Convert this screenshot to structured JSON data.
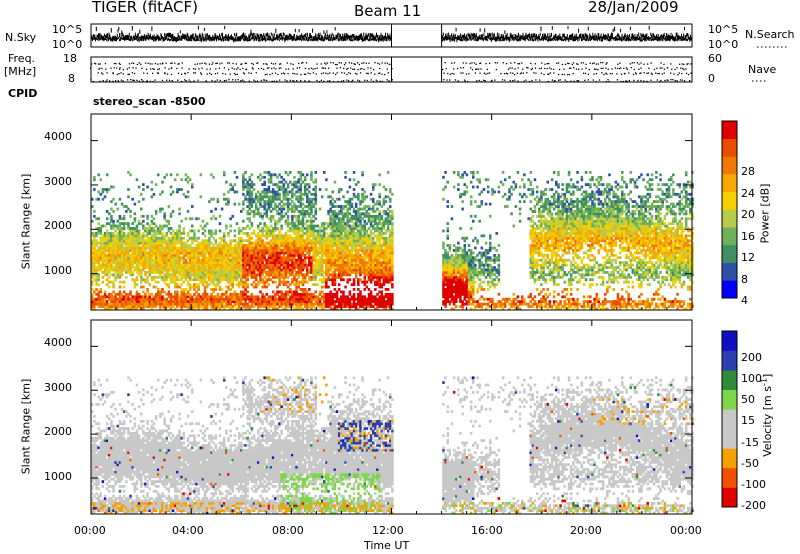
{
  "header": {
    "station": "TIGER (fitACF)",
    "beam": "Beam 11",
    "date": "28/Jan/2009"
  },
  "side_labels": {
    "nsky": "N.Sky",
    "freq": "Freq.",
    "mhz": "[MHz]",
    "cpid": "CPID",
    "nsearch": "N.Search",
    "nave": "Nave"
  },
  "cpid_value": "stereo_scan -8500",
  "colors": {
    "power": [
      "#0000ff",
      "#2e4fa8",
      "#3f8f62",
      "#6fb05a",
      "#b6cc4a",
      "#f5d000",
      "#f5a800",
      "#f07800",
      "#ea4b00",
      "#e00000"
    ],
    "velocity": [
      "#e00000",
      "#f05000",
      "#f5a000",
      "#c8c8c8",
      "#c8c8c8",
      "#7fd64a",
      "#2e8b3a",
      "#2a3fae",
      "#1010c0"
    ],
    "mark": "#000000"
  },
  "chart_data": [
    {
      "type": "line",
      "id": "noise-panel",
      "left_label": "N.Sky",
      "right_label": "N.Search",
      "y_ticks_left": [
        "10^5",
        "10^0"
      ],
      "y_ticks_right": [
        "10^5",
        "10^0"
      ],
      "x_range_hours": [
        0,
        24
      ],
      "data_gap_hours": [
        12,
        14
      ]
    },
    {
      "type": "scatter",
      "id": "freq-panel",
      "y_ticks_left": [
        "18",
        "8"
      ],
      "y_ticks_right": [
        "60",
        "0"
      ],
      "ylim_left": [
        8,
        18
      ],
      "ylim_right": [
        0,
        60
      ],
      "x_range_hours": [
        0,
        24
      ],
      "data_gap_hours": [
        12,
        14
      ]
    },
    {
      "type": "heatmap",
      "id": "power-panel",
      "ylabel": "Slant Range [km]",
      "y_ticks": [
        "1000",
        "2000",
        "3000",
        "4000"
      ],
      "y_tick_values": [
        1000,
        2000,
        3000,
        4000
      ],
      "ylim": [
        180,
        4600
      ],
      "x_range_hours": [
        0,
        24
      ],
      "data_gap_hours": [
        12,
        14
      ],
      "colorbar_label": "Power [dB]",
      "colorbar_ticks": [
        "4",
        "8",
        "12",
        "16",
        "20",
        "24",
        "28"
      ],
      "colorbar_range": [
        0,
        30
      ]
    },
    {
      "type": "heatmap",
      "id": "velocity-panel",
      "ylabel": "Slant Range [km]",
      "y_ticks": [
        "1000",
        "2000",
        "3000",
        "4000"
      ],
      "y_tick_values": [
        1000,
        2000,
        3000,
        4000
      ],
      "ylim": [
        180,
        4600
      ],
      "x_range_hours": [
        0,
        24
      ],
      "data_gap_hours": [
        12,
        14
      ],
      "xlabel": "Time UT",
      "x_ticks": [
        "00:00",
        "04:00",
        "08:00",
        "12:00",
        "16:00",
        "20:00",
        "00:00"
      ],
      "x_tick_values": [
        0,
        4,
        8,
        12,
        16,
        20,
        24
      ],
      "colorbar_label": "Velocity [m s",
      "colorbar_label_sup": "-1",
      "colorbar_label_end": "]",
      "colorbar_ticks": [
        "200",
        "100",
        "50",
        "15",
        "-15",
        "-50",
        "-100",
        "-200"
      ]
    }
  ]
}
